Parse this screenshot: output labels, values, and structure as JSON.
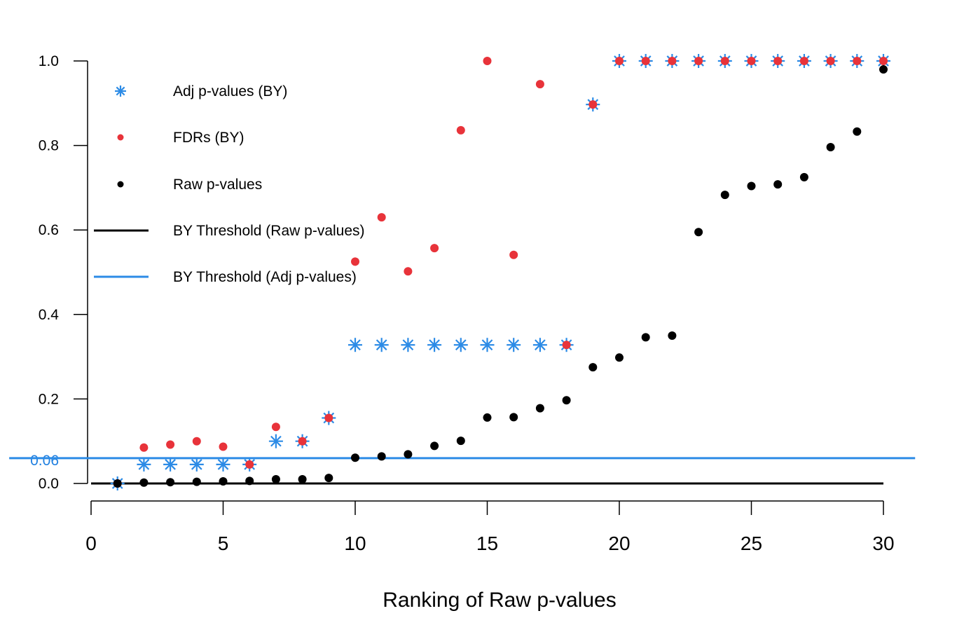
{
  "chart_data": {
    "type": "scatter",
    "title": "",
    "xlabel": "Ranking of Raw p-values",
    "ylabel": "",
    "xlim": [
      0,
      30
    ],
    "ylim": [
      0,
      1.0
    ],
    "x_ticks": [
      {
        "value": 0,
        "label": "0"
      },
      {
        "value": 5,
        "label": "5"
      },
      {
        "value": 10,
        "label": "10"
      },
      {
        "value": 15,
        "label": "15"
      },
      {
        "value": 20,
        "label": "20"
      },
      {
        "value": 25,
        "label": "25"
      },
      {
        "value": 30,
        "label": "30"
      }
    ],
    "y_ticks": [
      {
        "value": 0.0,
        "label": "0.0"
      },
      {
        "value": 0.2,
        "label": "0.2"
      },
      {
        "value": 0.4,
        "label": "0.4"
      },
      {
        "value": 0.6,
        "label": "0.6"
      },
      {
        "value": 0.8,
        "label": "0.8"
      },
      {
        "value": 1.0,
        "label": "1.0"
      }
    ],
    "highlight_tick": {
      "value": 0.06,
      "label": "0.06",
      "color": "#1f7fe0"
    },
    "x": [
      1,
      2,
      3,
      4,
      5,
      6,
      7,
      8,
      9,
      10,
      11,
      12,
      13,
      14,
      15,
      16,
      17,
      18,
      19,
      20,
      21,
      22,
      23,
      24,
      25,
      26,
      27,
      28,
      29,
      30
    ],
    "series": [
      {
        "name": "Adj p-values (BY)",
        "marker": "asterisk",
        "color": "#2c8be6",
        "values": [
          0.0,
          0.045,
          0.045,
          0.045,
          0.045,
          0.045,
          0.1,
          0.1,
          0.155,
          0.328,
          0.328,
          0.328,
          0.328,
          0.328,
          0.328,
          0.328,
          0.328,
          0.328,
          0.897,
          1.0,
          1.0,
          1.0,
          1.0,
          1.0,
          1.0,
          1.0,
          1.0,
          1.0,
          1.0,
          1.0
        ]
      },
      {
        "name": "FDRs (BY)",
        "marker": "dot",
        "color": "#e8333a",
        "values": [
          0.0,
          0.085,
          0.092,
          0.1,
          0.087,
          0.045,
          0.134,
          0.1,
          0.155,
          0.525,
          0.63,
          0.502,
          0.557,
          0.836,
          1.0,
          0.541,
          0.945,
          0.328,
          0.897,
          1.0,
          1.0,
          1.0,
          1.0,
          1.0,
          1.0,
          1.0,
          1.0,
          1.0,
          1.0,
          1.0
        ]
      },
      {
        "name": "Raw p-values",
        "marker": "dot",
        "color": "#000000",
        "values": [
          0.0,
          0.002,
          0.003,
          0.004,
          0.005,
          0.006,
          0.01,
          0.01,
          0.013,
          0.061,
          0.064,
          0.069,
          0.089,
          0.101,
          0.156,
          0.157,
          0.178,
          0.197,
          0.275,
          0.298,
          0.346,
          0.35,
          0.595,
          0.683,
          0.704,
          0.708,
          0.725,
          0.796,
          0.833,
          0.98
        ]
      }
    ],
    "lines": [
      {
        "name": "BY Threshold (Raw p-values)",
        "y": 0.0,
        "color": "#000000",
        "x_from": 0,
        "x_to": 30
      },
      {
        "name": "BY Threshold (Adj p-values)",
        "y": 0.06,
        "color": "#2c8be6",
        "x_from": -3.1,
        "x_to": 31.2
      }
    ],
    "legend": {
      "position": "top-left",
      "entries": [
        {
          "label": "Adj p-values (BY)",
          "marker": "asterisk",
          "color": "#2c8be6"
        },
        {
          "label": "FDRs (BY)",
          "marker": "dot",
          "color": "#e8333a"
        },
        {
          "label": "Raw p-values",
          "marker": "dot",
          "color": "#000000"
        },
        {
          "label": "BY Threshold (Raw p-values)",
          "marker": "line",
          "color": "#000000"
        },
        {
          "label": "BY Threshold (Adj p-values)",
          "marker": "line",
          "color": "#2c8be6"
        }
      ]
    }
  }
}
